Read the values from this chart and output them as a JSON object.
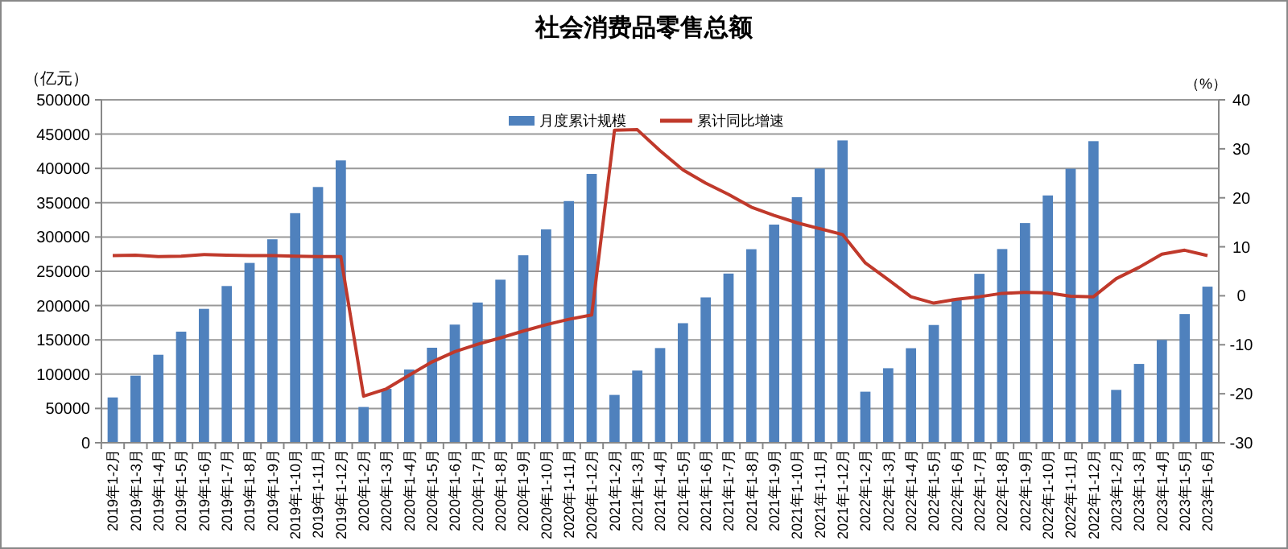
{
  "chart_data": {
    "type": "bar",
    "title": "社会消费品零售总额",
    "ylabel": "（亿元）",
    "y2label": "（%）",
    "categories": [
      "2019年1-2月",
      "2019年1-3月",
      "2019年1-4月",
      "2019年1-5月",
      "2019年1-6月",
      "2019年1-7月",
      "2019年1-8月",
      "2019年1-9月",
      "2019年1-10月",
      "2019年1-11月",
      "2019年1-12月",
      "2020年1-2月",
      "2020年1-3月",
      "2020年1-4月",
      "2020年1-5月",
      "2020年1-6月",
      "2020年1-7月",
      "2020年1-8月",
      "2020年1-9月",
      "2020年1-10月",
      "2020年1-11月",
      "2020年1-12月",
      "2021年1-2月",
      "2021年1-3月",
      "2021年1-4月",
      "2021年1-5月",
      "2021年1-6月",
      "2021年1-7月",
      "2021年1-8月",
      "2021年1-9月",
      "2021年1-10月",
      "2021年1-11月",
      "2021年1-12月",
      "2022年1-2月",
      "2022年1-3月",
      "2022年1-4月",
      "2022年1-5月",
      "2022年1-6月",
      "2022年1-7月",
      "2022年1-8月",
      "2022年1-9月",
      "2022年1-10月",
      "2022年1-11月",
      "2022年1-12月",
      "2023年1-2月",
      "2023年1-3月",
      "2023年1-4月",
      "2023年1-5月",
      "2023年1-6月"
    ],
    "series": [
      {
        "name": "月度累计规模",
        "color": "#4f81bd",
        "values": [
          66064,
          97790,
          128283,
          161954,
          195210,
          228492,
          262179,
          296674,
          334741,
          372872,
          411649,
          52130,
          78580,
          106758,
          138533,
          172256,
          204459,
          237742,
          273324,
          311138,
          352365,
          391981,
          69737,
          105221,
          138066,
          174319,
          211904,
          246666,
          282180,
          318057,
          358052,
          399828,
          440823,
          74426,
          108659,
          137839,
          171689,
          210432,
          246324,
          282429,
          320305,
          360575,
          399556,
          439733,
          77067,
          114922,
          149833,
          187636,
          227588
        ]
      },
      {
        "name": "累计同比增速",
        "type": "line",
        "axis": "y2",
        "color": "#c0392b",
        "values": [
          8.2,
          8.3,
          8.0,
          8.1,
          8.4,
          8.3,
          8.2,
          8.2,
          8.1,
          8.0,
          8.0,
          -20.5,
          -19.0,
          -16.2,
          -13.5,
          -11.4,
          -9.9,
          -8.6,
          -7.2,
          -5.9,
          -4.8,
          -3.9,
          33.8,
          33.9,
          29.6,
          25.7,
          23.0,
          20.7,
          18.1,
          16.4,
          14.9,
          13.7,
          12.5,
          6.7,
          3.3,
          -0.2,
          -1.5,
          -0.7,
          -0.2,
          0.5,
          0.7,
          0.6,
          -0.1,
          -0.2,
          3.5,
          5.8,
          8.5,
          9.3,
          8.2
        ]
      }
    ],
    "ylim": [
      0,
      500000
    ],
    "yticks": [
      0,
      50000,
      100000,
      150000,
      200000,
      250000,
      300000,
      350000,
      400000,
      450000,
      500000
    ],
    "y2lim": [
      -30,
      40
    ],
    "y2ticks": [
      -30,
      -20,
      -10,
      0,
      10,
      20,
      30,
      40
    ],
    "grid": "y",
    "legend": "top",
    "marker": "none",
    "line_style": "solid"
  }
}
